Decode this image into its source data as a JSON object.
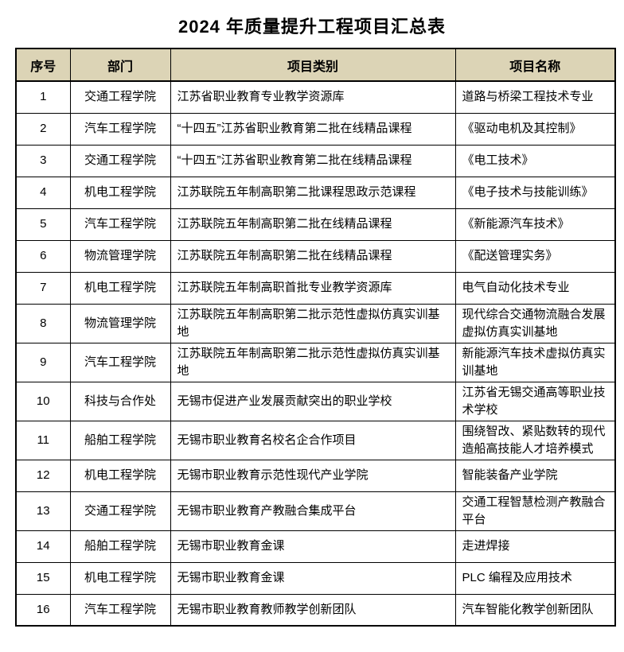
{
  "title": "2024 年质量提升工程项目汇总表",
  "colors": {
    "header_bg": "#dcd4b6",
    "border": "#000000",
    "text": "#000000",
    "page_bg": "#ffffff"
  },
  "table": {
    "headers": [
      "序号",
      "部门",
      "项目类别",
      "项目名称"
    ],
    "rows": [
      {
        "no": "1",
        "dept": "交通工程学院",
        "category": "江苏省职业教育专业教学资源库",
        "name": "道路与桥梁工程技术专业"
      },
      {
        "no": "2",
        "dept": "汽车工程学院",
        "category": "“十四五”江苏省职业教育第二批在线精品课程",
        "name": "《驱动电机及其控制》"
      },
      {
        "no": "3",
        "dept": "交通工程学院",
        "category": "“十四五”江苏省职业教育第二批在线精品课程",
        "name": "《电工技术》"
      },
      {
        "no": "4",
        "dept": "机电工程学院",
        "category": "江苏联院五年制高职第二批课程思政示范课程",
        "name": "《电子技术与技能训练》"
      },
      {
        "no": "5",
        "dept": "汽车工程学院",
        "category": "江苏联院五年制高职第二批在线精品课程",
        "name": "《新能源汽车技术》"
      },
      {
        "no": "6",
        "dept": "物流管理学院",
        "category": "江苏联院五年制高职第二批在线精品课程",
        "name": "《配送管理实务》"
      },
      {
        "no": "7",
        "dept": "机电工程学院",
        "category": "江苏联院五年制高职首批专业教学资源库",
        "name": "电气自动化技术专业"
      },
      {
        "no": "8",
        "dept": "物流管理学院",
        "category": "江苏联院五年制高职第二批示范性虚拟仿真实训基地",
        "name": "现代综合交通物流融合发展虚拟仿真实训基地"
      },
      {
        "no": "9",
        "dept": "汽车工程学院",
        "category": "江苏联院五年制高职第二批示范性虚拟仿真实训基地",
        "name": "新能源汽车技术虚拟仿真实训基地"
      },
      {
        "no": "10",
        "dept": "科技与合作处",
        "category": "无锡市促进产业发展贡献突出的职业学校",
        "name": "江苏省无锡交通高等职业技术学校"
      },
      {
        "no": "11",
        "dept": "船舶工程学院",
        "category": "无锡市职业教育名校名企合作项目",
        "name": "围绕智改、紧贴数转的现代造船高技能人才培养模式"
      },
      {
        "no": "12",
        "dept": "机电工程学院",
        "category": "无锡市职业教育示范性现代产业学院",
        "name": "智能装备产业学院"
      },
      {
        "no": "13",
        "dept": "交通工程学院",
        "category": "无锡市职业教育产教融合集成平台",
        "name": "交通工程智慧检测产教融合平台"
      },
      {
        "no": "14",
        "dept": "船舶工程学院",
        "category": "无锡市职业教育金课",
        "name": "走进焊接"
      },
      {
        "no": "15",
        "dept": "机电工程学院",
        "category": "无锡市职业教育金课",
        "name": "PLC 编程及应用技术"
      },
      {
        "no": "16",
        "dept": "汽车工程学院",
        "category": "无锡市职业教育教师教学创新团队",
        "name": "汽车智能化教学创新团队"
      }
    ]
  }
}
